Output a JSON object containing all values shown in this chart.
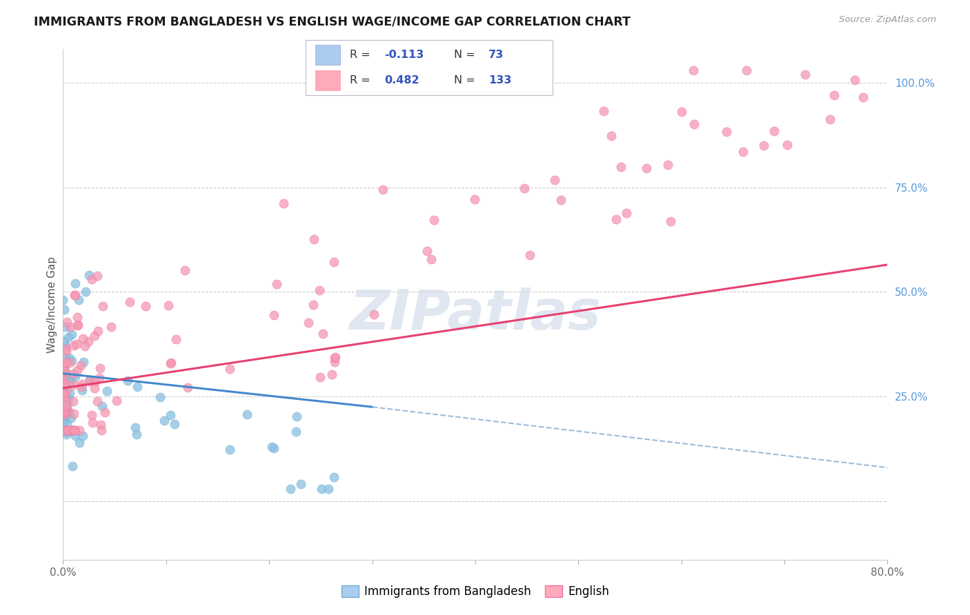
{
  "title": "IMMIGRANTS FROM BANGLADESH VS ENGLISH WAGE/INCOME GAP CORRELATION CHART",
  "source": "Source: ZipAtlas.com",
  "ylabel": "Wage/Income Gap",
  "series1_color": "#89bfdf",
  "series2_color": "#f498b0",
  "series1_edge": "#6aafd8",
  "series2_edge": "#f070a0",
  "trendline1_color": "#4488cc",
  "trendline2_color": "#e84070",
  "trendline1_dashed_color": "#99bbdd",
  "watermark_color": "#ccd8e8",
  "background_color": "#ffffff",
  "grid_color": "#cccccc",
  "right_tick_color": "#5599dd",
  "xlim": [
    0.0,
    0.8
  ],
  "ylim": [
    -0.14,
    1.08
  ],
  "right_yticks": [
    0.0,
    0.25,
    0.5,
    0.75,
    1.0
  ],
  "right_yticklabels": [
    "",
    "25.0%",
    "50.0%",
    "75.0%",
    "100.0%"
  ],
  "xticks": [
    0.0,
    0.1,
    0.2,
    0.3,
    0.4,
    0.5,
    0.6,
    0.7,
    0.8
  ],
  "xticklabels_show": [
    "0.0%",
    "80.0%"
  ],
  "legend_R1": "-0.113",
  "legend_N1": "73",
  "legend_R2": "0.482",
  "legend_N2": "133",
  "legend_color1": "#aaccee",
  "legend_color2": "#ffaabb",
  "legend_text_color": "#333333",
  "legend_val_color": "#3355bb"
}
